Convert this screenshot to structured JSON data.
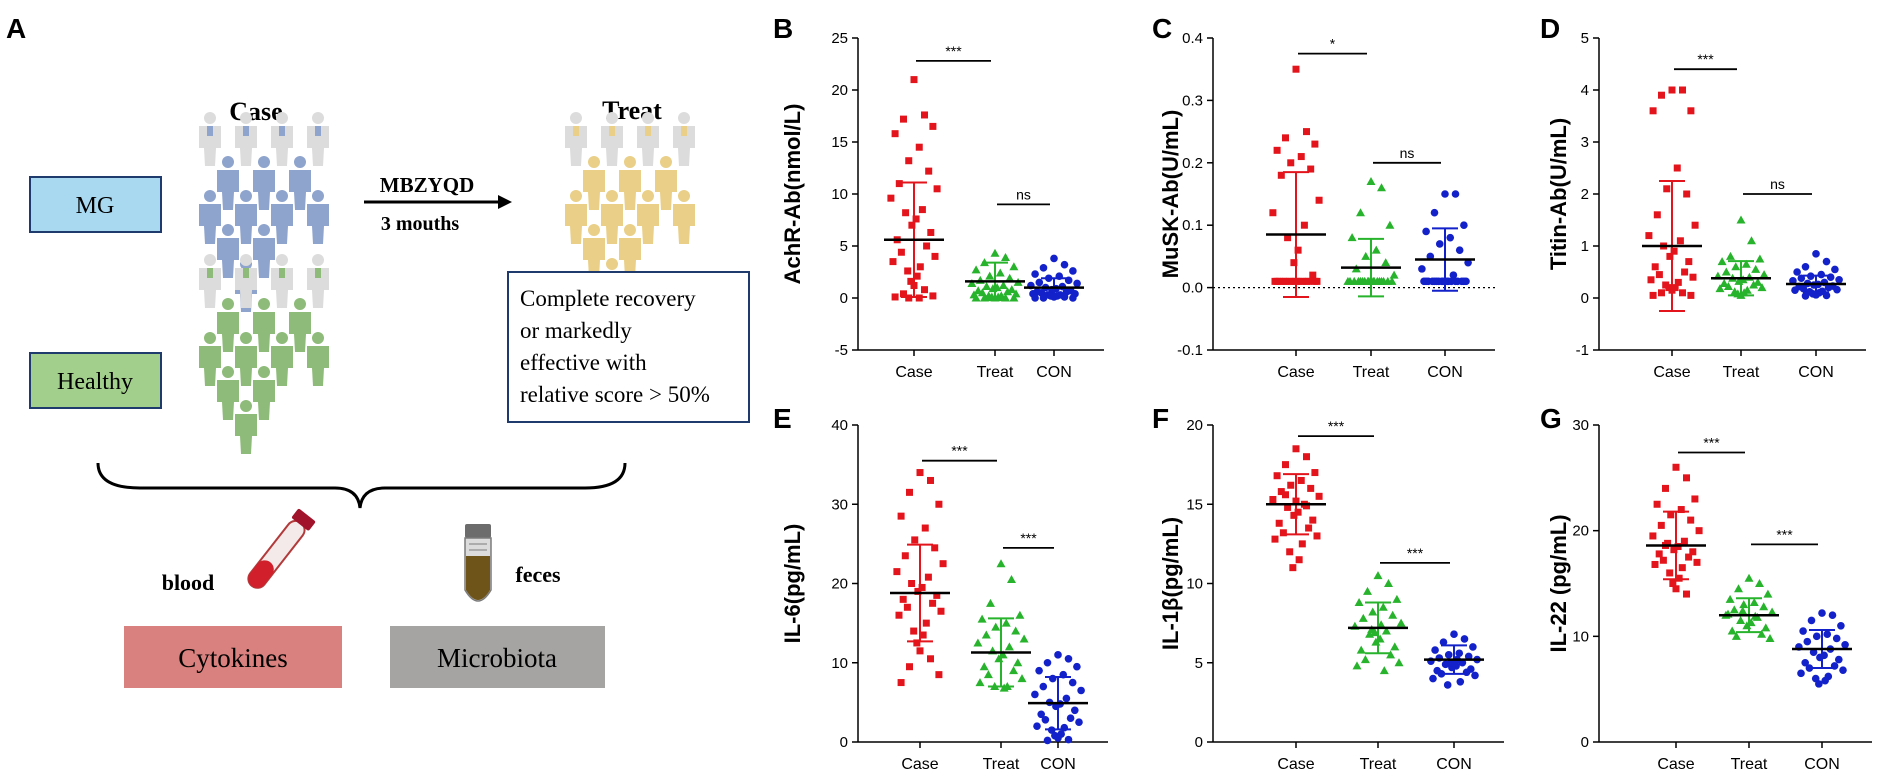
{
  "panel_a": {
    "letter": "A",
    "case_title": "Case",
    "treat_title": "Treat",
    "mg_label": "MG",
    "healthy_label": "Healthy",
    "arrow_line1": "MBZYQD",
    "arrow_line2": "3 mouths",
    "outcome_lines": [
      "Complete recovery",
      "or markedly",
      "effective with",
      "relative score > 50%"
    ],
    "blood_label": "blood",
    "feces_label": "feces",
    "cytokines_label": "Cytokines",
    "microbiota_label": "Microbiota",
    "colors": {
      "mg_box": "#a9d9f0",
      "healthy_box": "#a3cf8c",
      "cytokines_box": "#d9817e",
      "microbiota_box": "#a6a4a3",
      "box_border": "#1f3b6e",
      "case_person": "#8fa4cc",
      "treat_person": "#e9cf88",
      "healthy_person": "#8fbb7a",
      "faded_person": "#dcdcdc"
    }
  },
  "colors": {
    "Case": "#e3141b",
    "Treat": "#28b32c",
    "CON": "#1221c9"
  },
  "chart_data": [
    {
      "id": "B",
      "letter": "B",
      "type": "scatter",
      "ylabel": "AchR-Ab(nmol/L)",
      "ylim": [
        -5,
        25
      ],
      "yticks": [
        -5,
        0,
        5,
        10,
        15,
        20,
        25
      ],
      "categories": [
        "Case",
        "Treat",
        "CON"
      ],
      "markers": [
        "square",
        "triangle",
        "circle"
      ],
      "zero_line": false,
      "means": [
        5.6,
        1.6,
        1.0
      ],
      "sd": [
        5.5,
        1.8,
        0.9
      ],
      "points": [
        [
          21.0,
          17.6,
          17.2,
          16.5,
          15.8,
          14.5,
          13.2,
          12.2,
          11.0,
          10.5,
          9.6,
          8.5,
          8.2,
          7.6,
          7.0,
          6.3,
          5.6,
          5.0,
          4.4,
          4.0,
          3.5,
          3.0,
          2.6,
          2.1,
          1.6,
          1.2,
          0.8,
          0.4,
          0.2,
          0.1,
          0.0,
          0.0
        ],
        [
          4.3,
          3.9,
          3.4,
          3.0,
          2.7,
          2.4,
          2.1,
          1.9,
          1.7,
          1.5,
          1.4,
          1.2,
          1.1,
          1.0,
          0.9,
          0.8,
          0.7,
          0.6,
          0.5,
          0.4,
          0.3,
          0.2,
          0.2,
          0.1,
          0.1,
          0.0,
          0.0,
          0.0,
          0.0,
          0.0
        ],
        [
          3.8,
          3.2,
          2.9,
          2.6,
          2.3,
          2.1,
          1.9,
          1.7,
          1.5,
          1.4,
          1.2,
          1.1,
          1.0,
          0.9,
          0.8,
          0.7,
          0.6,
          0.6,
          0.5,
          0.4,
          0.4,
          0.3,
          0.3,
          0.2,
          0.2,
          0.1,
          0.1,
          0.0,
          0.0,
          0.0
        ]
      ],
      "brackets": [
        {
          "from": 0,
          "to": 1,
          "y": 22.8,
          "label": "***"
        },
        {
          "from": 1,
          "to": 2,
          "y": 9.0,
          "label": "ns"
        }
      ]
    },
    {
      "id": "C",
      "letter": "C",
      "type": "scatter",
      "ylabel": "MuSK-Ab(U/mL)",
      "ylim": [
        -0.1,
        0.4
      ],
      "yticks": [
        -0.1,
        0.0,
        0.1,
        0.2,
        0.3,
        0.4
      ],
      "tick_labels": [
        "-0.1",
        "0.0",
        "0.1",
        "0.2",
        "0.3",
        "0.4"
      ],
      "categories": [
        "Case",
        "Treat",
        "CON"
      ],
      "markers": [
        "square",
        "triangle",
        "circle"
      ],
      "zero_line": true,
      "means": [
        0.085,
        0.032,
        0.045
      ],
      "sd": [
        0.1,
        0.046,
        0.05
      ],
      "points": [
        [
          0.35,
          0.25,
          0.24,
          0.23,
          0.22,
          0.21,
          0.2,
          0.19,
          0.18,
          0.14,
          0.12,
          0.1,
          0.08,
          0.06,
          0.04,
          0.02,
          0.01,
          0.01,
          0.01,
          0.01,
          0.01,
          0.01,
          0.01,
          0.01,
          0.01,
          0.01,
          0.01,
          0.01,
          0.01,
          0.01
        ],
        [
          0.17,
          0.16,
          0.12,
          0.1,
          0.08,
          0.06,
          0.05,
          0.04,
          0.03,
          0.02,
          0.01,
          0.01,
          0.01,
          0.01,
          0.01,
          0.01,
          0.01,
          0.01,
          0.01,
          0.01,
          0.01,
          0.01,
          0.01,
          0.01,
          0.01,
          0.01,
          0.01,
          0.01
        ],
        [
          0.15,
          0.15,
          0.12,
          0.1,
          0.09,
          0.08,
          0.07,
          0.06,
          0.05,
          0.04,
          0.03,
          0.02,
          0.01,
          0.01,
          0.01,
          0.01,
          0.01,
          0.01,
          0.01,
          0.01,
          0.01,
          0.01,
          0.01,
          0.01,
          0.01,
          0.01,
          0.01,
          0.01,
          0.01,
          0.01
        ]
      ],
      "brackets": [
        {
          "from": 0,
          "to": 1,
          "y": 0.375,
          "label": "*"
        },
        {
          "from": 1,
          "to": 2,
          "y": 0.2,
          "label": "ns"
        }
      ]
    },
    {
      "id": "D",
      "letter": "D",
      "type": "scatter",
      "ylabel": "Titin-Ab(U/mL)",
      "ylim": [
        -1,
        5
      ],
      "yticks": [
        -1,
        0,
        1,
        2,
        3,
        4,
        5
      ],
      "categories": [
        "Case",
        "Treat",
        "CON"
      ],
      "markers": [
        "square",
        "triangle",
        "circle"
      ],
      "zero_line": false,
      "means": [
        1.0,
        0.38,
        0.27
      ],
      "sd": [
        1.25,
        0.33,
        0.16
      ],
      "points": [
        [
          4.0,
          4.0,
          3.9,
          3.6,
          3.6,
          2.5,
          2.1,
          2.0,
          1.6,
          1.4,
          1.2,
          1.1,
          1.0,
          0.9,
          0.8,
          0.7,
          0.6,
          0.5,
          0.45,
          0.4,
          0.35,
          0.3,
          0.25,
          0.2,
          0.2,
          0.15,
          0.1,
          0.1,
          0.05,
          0.05
        ],
        [
          1.5,
          1.1,
          0.8,
          0.75,
          0.7,
          0.65,
          0.6,
          0.55,
          0.5,
          0.45,
          0.42,
          0.4,
          0.38,
          0.35,
          0.32,
          0.3,
          0.28,
          0.25,
          0.22,
          0.2,
          0.18,
          0.15,
          0.12,
          0.1,
          0.08,
          0.05
        ],
        [
          0.85,
          0.7,
          0.6,
          0.55,
          0.5,
          0.45,
          0.42,
          0.4,
          0.38,
          0.35,
          0.33,
          0.3,
          0.28,
          0.26,
          0.25,
          0.23,
          0.22,
          0.2,
          0.18,
          0.16,
          0.15,
          0.13,
          0.12,
          0.1,
          0.08,
          0.06,
          0.05,
          0.04
        ]
      ],
      "brackets": [
        {
          "from": 0,
          "to": 1,
          "y": 4.4,
          "label": "***"
        },
        {
          "from": 1,
          "to": 2,
          "y": 2.0,
          "label": "ns"
        }
      ]
    },
    {
      "id": "E",
      "letter": "E",
      "type": "scatter",
      "ylabel": "IL-6(pg/mL)",
      "ylim": [
        0,
        40
      ],
      "yticks": [
        0,
        10,
        20,
        30,
        40
      ],
      "categories": [
        "Case",
        "Treat",
        "CON"
      ],
      "markers": [
        "square",
        "triangle",
        "circle"
      ],
      "zero_line": false,
      "means": [
        18.8,
        11.3,
        4.9
      ],
      "sd": [
        6.1,
        4.3,
        3.3
      ],
      "points": [
        [
          34.0,
          33.0,
          31.5,
          30.0,
          28.5,
          27.0,
          25.5,
          24.5,
          23.5,
          22.5,
          21.5,
          20.8,
          20.0,
          19.5,
          19.0,
          18.5,
          18.0,
          17.5,
          17.0,
          16.5,
          16.0,
          15.0,
          14.0,
          13.5,
          12.5,
          11.5,
          10.5,
          9.5,
          8.5,
          7.5
        ],
        [
          22.5,
          20.5,
          17.5,
          16.0,
          15.5,
          15.0,
          14.5,
          14.0,
          13.5,
          13.0,
          12.5,
          12.0,
          11.5,
          11.0,
          10.5,
          10.0,
          9.5,
          9.0,
          8.5,
          8.0,
          7.5,
          7.0,
          7.0,
          6.8
        ],
        [
          11.0,
          10.5,
          10.0,
          9.5,
          9.0,
          8.5,
          8.0,
          7.5,
          7.0,
          6.5,
          6.0,
          5.5,
          5.0,
          4.8,
          4.5,
          4.0,
          3.5,
          3.0,
          2.8,
          2.5,
          2.0,
          1.8,
          1.5,
          1.0,
          0.8,
          0.5,
          0.3,
          0.2
        ]
      ],
      "brackets": [
        {
          "from": 0,
          "to": 1,
          "y": 35.5,
          "label": "***"
        },
        {
          "from": 1,
          "to": 2,
          "y": 24.5,
          "label": "***"
        }
      ]
    },
    {
      "id": "F",
      "letter": "F",
      "type": "scatter",
      "ylabel": "IL-1β(pg/mL)",
      "ylim": [
        0,
        20
      ],
      "yticks": [
        0,
        5,
        10,
        15,
        20
      ],
      "categories": [
        "Case",
        "Treat",
        "CON"
      ],
      "markers": [
        "square",
        "triangle",
        "circle"
      ],
      "zero_line": false,
      "means": [
        15.0,
        7.2,
        5.2
      ],
      "sd": [
        1.9,
        1.6,
        0.9
      ],
      "points": [
        [
          18.5,
          18.0,
          17.5,
          17.0,
          16.8,
          16.5,
          16.2,
          16.0,
          15.8,
          15.5,
          15.3,
          15.0,
          14.8,
          14.5,
          14.3,
          14.0,
          13.8,
          13.5,
          13.2,
          13.0,
          12.8,
          12.5,
          12.0,
          11.5,
          11.0,
          15.2,
          14.9,
          15.6
        ],
        [
          10.5,
          10.0,
          9.5,
          9.0,
          8.8,
          8.5,
          8.2,
          8.0,
          7.8,
          7.5,
          7.3,
          7.0,
          6.8,
          6.5,
          6.3,
          6.0,
          5.8,
          5.5,
          5.2,
          5.0,
          4.8,
          4.5,
          7.1,
          7.4,
          6.9
        ],
        [
          6.8,
          6.5,
          6.3,
          6.0,
          5.8,
          5.6,
          5.5,
          5.4,
          5.3,
          5.2,
          5.1,
          5.0,
          4.9,
          4.8,
          4.7,
          4.6,
          4.5,
          4.4,
          4.3,
          4.2,
          4.0,
          3.8,
          3.6,
          5.2,
          5.0
        ]
      ],
      "brackets": [
        {
          "from": 0,
          "to": 1,
          "y": 19.3,
          "label": "***"
        },
        {
          "from": 1,
          "to": 2,
          "y": 11.3,
          "label": "***"
        }
      ]
    },
    {
      "id": "G",
      "letter": "G",
      "type": "scatter",
      "ylabel": "IL-22 (pg/mL)",
      "ylim": [
        0,
        30
      ],
      "yticks": [
        0,
        10,
        20,
        30
      ],
      "categories": [
        "Case",
        "Treat",
        "CON"
      ],
      "markers": [
        "square",
        "triangle",
        "circle"
      ],
      "zero_line": false,
      "means": [
        18.6,
        12.0,
        8.8
      ],
      "sd": [
        3.2,
        1.6,
        1.8
      ],
      "points": [
        [
          26.0,
          25.0,
          24.0,
          23.0,
          22.5,
          22.0,
          21.5,
          21.0,
          20.5,
          20.0,
          19.5,
          19.0,
          18.8,
          18.5,
          18.2,
          18.0,
          17.8,
          17.5,
          17.2,
          17.0,
          16.8,
          16.5,
          16.0,
          15.5,
          15.0,
          14.5,
          14.0,
          18.6
        ],
        [
          15.5,
          15.0,
          14.5,
          14.0,
          13.5,
          13.2,
          13.0,
          12.8,
          12.5,
          12.3,
          12.0,
          11.8,
          11.5,
          11.3,
          11.0,
          10.8,
          10.5,
          10.2,
          10.0,
          9.8,
          12.1,
          11.9,
          12.4
        ],
        [
          12.2,
          12.0,
          11.5,
          11.0,
          10.5,
          10.2,
          10.0,
          9.8,
          9.5,
          9.2,
          9.0,
          8.8,
          8.5,
          8.2,
          8.0,
          7.8,
          7.5,
          7.2,
          7.0,
          6.8,
          6.5,
          6.2,
          6.0,
          5.8,
          5.5
        ]
      ],
      "brackets": [
        {
          "from": 0,
          "to": 1,
          "y": 27.4,
          "label": "***"
        },
        {
          "from": 1,
          "to": 2,
          "y": 18.7,
          "label": "***"
        }
      ]
    }
  ]
}
